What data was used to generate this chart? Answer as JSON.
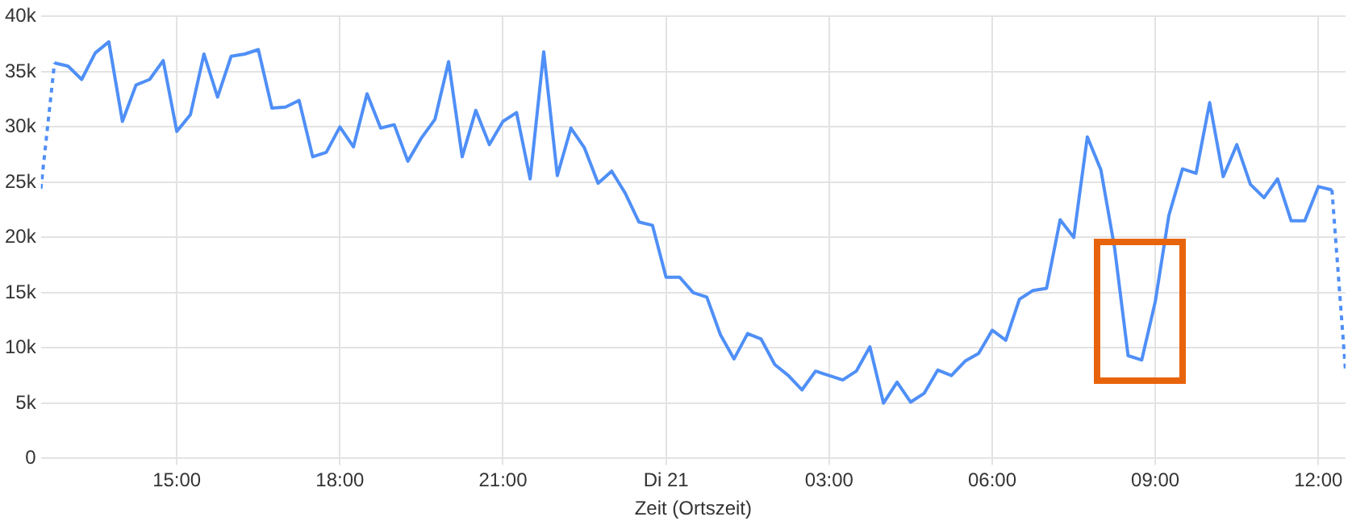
{
  "chart_data": {
    "type": "line",
    "xlabel": "Zeit (Ortszeit)",
    "xlim": [
      "--05-20T12:30",
      "--05-21T12:30"
    ],
    "xticks": [
      {
        "value": "--05-20T15:00",
        "label": "15:00"
      },
      {
        "value": "--05-20T18:00",
        "label": "18:00"
      },
      {
        "value": "--05-20T21:00",
        "label": "21:00"
      },
      {
        "value": "--05-21T00:00",
        "label": "Di 21"
      },
      {
        "value": "--05-21T03:00",
        "label": "03:00"
      },
      {
        "value": "--05-21T06:00",
        "label": "06:00"
      },
      {
        "value": "--05-21T09:00",
        "label": "09:00"
      },
      {
        "value": "--05-21T12:00",
        "label": "12:00"
      }
    ],
    "ylim": [
      0,
      40000
    ],
    "yticks": [
      0,
      {
        "value": 5000,
        "label": "5k"
      },
      {
        "value": 10000,
        "label": "10k"
      },
      {
        "value": 15000,
        "label": "15k"
      },
      {
        "value": 20000,
        "label": "20k"
      },
      {
        "value": 25000,
        "label": "25k"
      },
      {
        "value": 30000,
        "label": "30k"
      },
      {
        "value": 35000,
        "label": "35k"
      },
      {
        "value": 40000,
        "label": "40k"
      }
    ],
    "grid": true,
    "legend": false,
    "marker": "none",
    "series": [
      {
        "color": "#4f8ff7",
        "line_style": "dotted",
        "x": [
          "--05-20T12:30",
          "--05-20T12:45"
        ],
        "values": [
          24400,
          35800
        ]
      },
      {
        "color": "#4f8ff7",
        "line_style": "solid",
        "x": [
          "--05-20T12:45",
          "--05-20T13:00",
          "--05-20T13:15",
          "--05-20T13:30",
          "--05-20T13:45",
          "--05-20T14:00",
          "--05-20T14:15",
          "--05-20T14:30",
          "--05-20T14:45",
          "--05-20T15:00",
          "--05-20T15:15",
          "--05-20T15:30",
          "--05-20T15:45",
          "--05-20T16:00",
          "--05-20T16:15",
          "--05-20T16:30",
          "--05-20T16:45",
          "--05-20T17:00",
          "--05-20T17:15",
          "--05-20T17:30",
          "--05-20T17:45",
          "--05-20T18:00",
          "--05-20T18:15",
          "--05-20T18:30",
          "--05-20T18:45",
          "--05-20T19:00",
          "--05-20T19:15",
          "--05-20T19:30",
          "--05-20T19:45",
          "--05-20T20:00",
          "--05-20T20:15",
          "--05-20T20:30",
          "--05-20T20:45",
          "--05-20T21:00",
          "--05-20T21:15",
          "--05-20T21:30",
          "--05-20T21:45",
          "--05-20T22:00",
          "--05-20T22:15",
          "--05-20T22:30",
          "--05-20T22:45",
          "--05-20T23:00",
          "--05-20T23:15",
          "--05-20T23:30",
          "--05-20T23:45",
          "--05-21T00:00",
          "--05-21T00:15",
          "--05-21T00:30",
          "--05-21T00:45",
          "--05-21T01:00",
          "--05-21T01:15",
          "--05-21T01:30",
          "--05-21T01:45",
          "--05-21T02:00",
          "--05-21T02:15",
          "--05-21T02:30",
          "--05-21T02:45",
          "--05-21T03:00",
          "--05-21T03:15",
          "--05-21T03:30",
          "--05-21T03:45",
          "--05-21T04:00",
          "--05-21T04:15",
          "--05-21T04:30",
          "--05-21T04:45",
          "--05-21T05:00",
          "--05-21T05:15",
          "--05-21T05:30",
          "--05-21T05:45",
          "--05-21T06:00",
          "--05-21T06:15",
          "--05-21T06:30",
          "--05-21T06:45",
          "--05-21T07:00",
          "--05-21T07:15",
          "--05-21T07:30",
          "--05-21T07:45",
          "--05-21T08:00",
          "--05-21T08:15",
          "--05-21T08:30",
          "--05-21T08:45",
          "--05-21T09:00",
          "--05-21T09:15",
          "--05-21T09:30",
          "--05-21T09:45",
          "--05-21T10:00",
          "--05-21T10:15",
          "--05-21T10:30",
          "--05-21T10:45",
          "--05-21T11:00",
          "--05-21T11:15",
          "--05-21T11:30",
          "--05-21T11:45",
          "--05-21T12:00",
          "--05-21T12:15"
        ],
        "values": [
          35800,
          35500,
          34300,
          36700,
          37700,
          30500,
          33800,
          34300,
          36000,
          29600,
          31100,
          36600,
          32700,
          36400,
          36600,
          37000,
          31700,
          31800,
          32400,
          27300,
          27700,
          30000,
          28200,
          33000,
          29900,
          30200,
          26900,
          29000,
          30700,
          35900,
          27300,
          31500,
          28400,
          30500,
          31300,
          25300,
          36800,
          25600,
          29900,
          28100,
          24900,
          26000,
          24000,
          21400,
          21100,
          16400,
          16400,
          15000,
          14600,
          11200,
          9000,
          11300,
          10800,
          8500,
          7500,
          6200,
          7900,
          7500,
          7100,
          7900,
          10100,
          5000,
          6900,
          5100,
          5900,
          8000,
          7500,
          8800,
          9500,
          11600,
          10700,
          14400,
          15200,
          15400,
          21600,
          20000,
          29100,
          26100,
          19100,
          9300,
          8900,
          14200,
          22000,
          26200,
          25800,
          32200,
          25500,
          28400,
          24800,
          23600,
          25300,
          21500,
          21500,
          24600,
          24300
        ]
      },
      {
        "color": "#4f8ff7",
        "line_style": "dotted",
        "x": [
          "--05-21T12:15",
          "--05-21T12:30"
        ],
        "values": [
          24300,
          7900
        ]
      }
    ]
  }
}
